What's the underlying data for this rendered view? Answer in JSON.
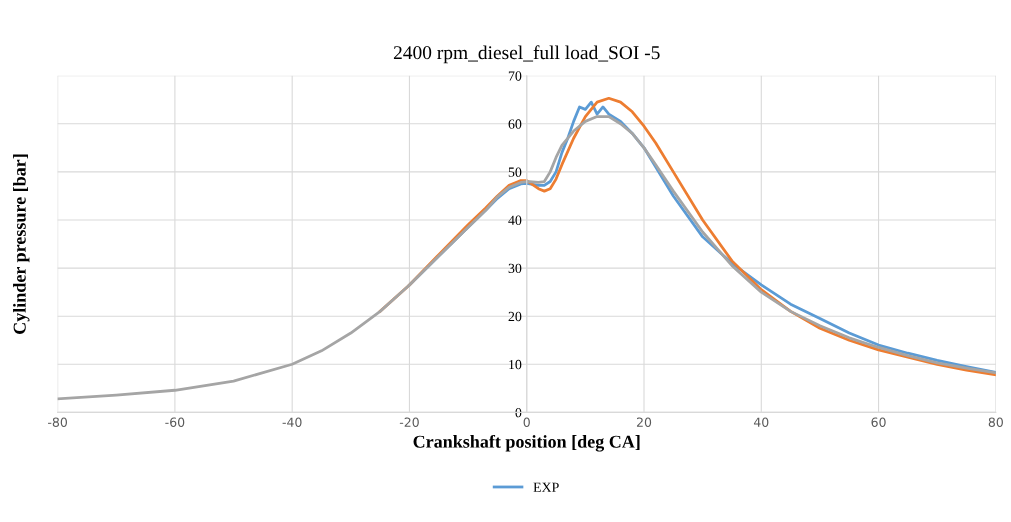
{
  "chart_data": {
    "type": "line",
    "title": "2400 rpm_diesel_full load_SOI -5",
    "xlabel": "Crankshaft position [deg CA]",
    "ylabel": "Cylinder pressure [bar]",
    "xlim": [
      -80,
      80
    ],
    "xticks": [
      -80,
      -60,
      -40,
      -20,
      0,
      20,
      40,
      60,
      80
    ],
    "ylim": [
      0,
      70
    ],
    "yticks": [
      0,
      10,
      20,
      30,
      40,
      50,
      60,
      70
    ],
    "grid": true,
    "legend": "bottom",
    "marker": "none",
    "line_style": "solid",
    "series": [
      {
        "name": "EXP",
        "color": "#5b9bd5",
        "x": [
          -20,
          -15,
          -10,
          -7,
          -5,
          -3,
          -1,
          0,
          1,
          2,
          3,
          4,
          5,
          6,
          7,
          8,
          9,
          10,
          11,
          12,
          13,
          14,
          16,
          18,
          20,
          22,
          25,
          30,
          35,
          40,
          45,
          50,
          55,
          60,
          65,
          70,
          75,
          80
        ],
        "values": [
          26.5,
          32.5,
          38.5,
          42,
          44.5,
          46.5,
          47.5,
          47.6,
          47.4,
          47.2,
          47.2,
          48,
          50,
          54,
          57,
          60.5,
          63.5,
          63,
          64.5,
          62,
          63.5,
          62,
          60.5,
          58,
          55,
          51,
          45,
          36.5,
          31,
          26.5,
          22.5,
          19.5,
          16.5,
          14,
          12.3,
          10.8,
          9.5,
          8.3
        ]
      },
      {
        "color": "#ed7d31",
        "x": [
          -25,
          -20,
          -15,
          -10,
          -7,
          -5,
          -3,
          -1,
          0,
          2,
          3,
          4,
          5,
          6,
          8,
          10,
          12,
          14,
          16,
          18,
          20,
          22,
          25,
          30,
          35,
          40,
          45,
          50,
          55,
          60,
          65,
          70,
          75,
          80
        ],
        "values": [
          21,
          26.5,
          32.8,
          39,
          42.5,
          45,
          47.2,
          48.2,
          48.2,
          46.5,
          46,
          46.5,
          48.5,
          51.5,
          57,
          61.5,
          64.5,
          65.3,
          64.5,
          62.5,
          59.5,
          56,
          50,
          40,
          31.5,
          25.5,
          21,
          17.5,
          15,
          13,
          11.5,
          10,
          8.8,
          7.8
        ]
      },
      {
        "color": "#a5a5a5",
        "x": [
          -80,
          -70,
          -60,
          -50,
          -40,
          -35,
          -30,
          -25,
          -20,
          -15,
          -10,
          -7,
          -5,
          -3,
          -1,
          0,
          1,
          2,
          3,
          4,
          5,
          6,
          8,
          10,
          12,
          14,
          16,
          18,
          20,
          22,
          25,
          30,
          35,
          40,
          45,
          50,
          55,
          60,
          65,
          70,
          75,
          80
        ],
        "values": [
          2.8,
          3.6,
          4.6,
          6.5,
          10,
          12.8,
          16.5,
          21,
          26.5,
          32.5,
          38.5,
          42,
          44.8,
          46.8,
          47.8,
          48,
          47.9,
          47.8,
          48,
          50,
          53,
          55.5,
          58.5,
          60.5,
          61.5,
          61.5,
          60,
          58,
          55,
          51.5,
          46,
          37.5,
          30.5,
          25,
          21,
          18,
          15.5,
          13.5,
          11.8,
          10.3,
          9.2,
          8.2
        ]
      }
    ]
  }
}
